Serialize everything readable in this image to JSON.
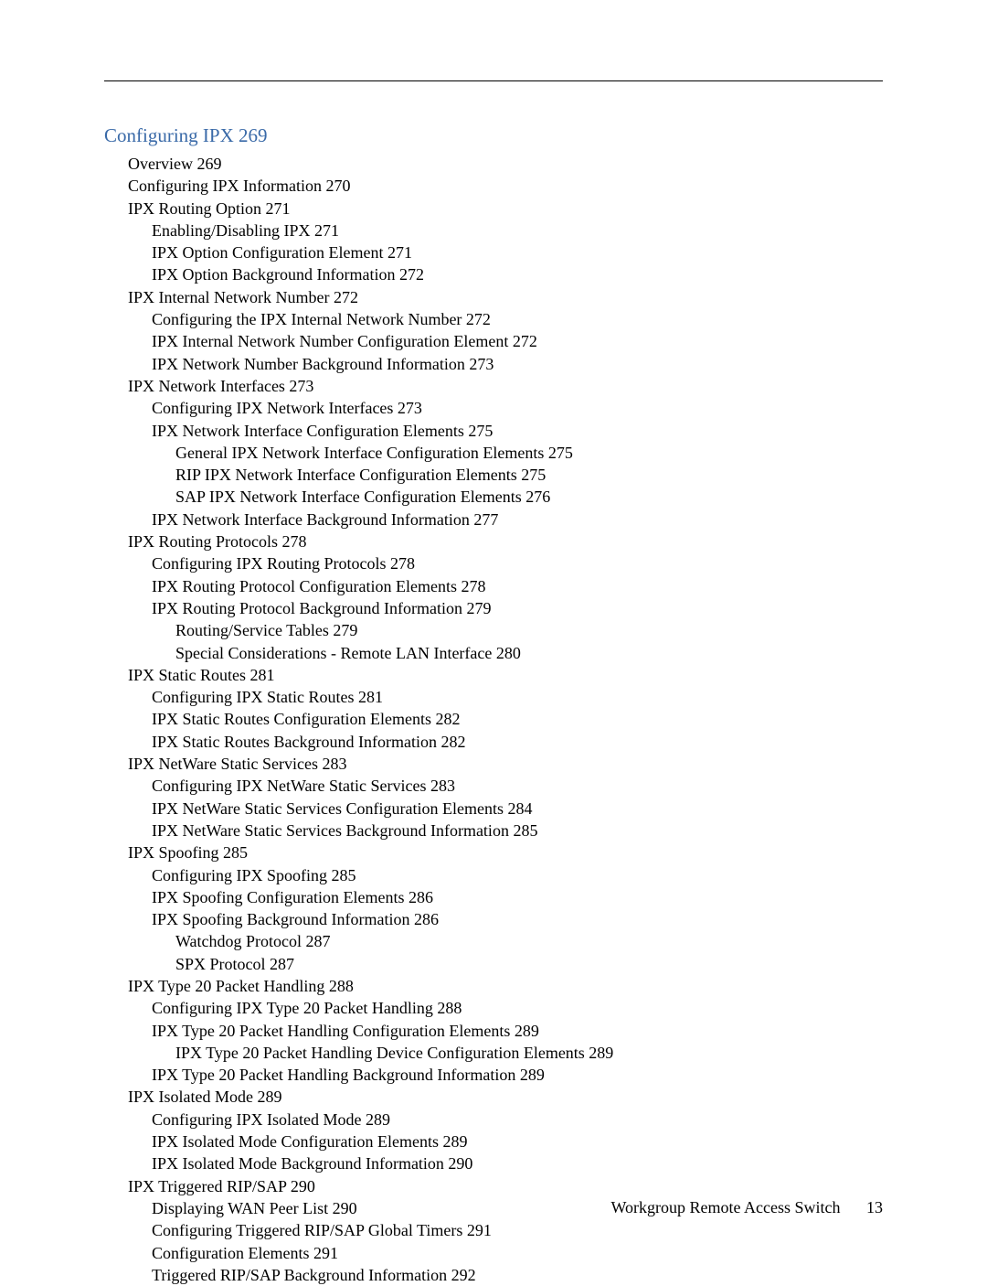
{
  "chapter": {
    "title": "Configuring IPX 269",
    "title_color": "#3a6aa8",
    "title_fontsize": 21,
    "body_fontsize": 18,
    "body_color": "#000000"
  },
  "toc": {
    "e0": "Overview 269",
    "e1": "Configuring IPX Information 270",
    "e2": "IPX Routing Option 271",
    "e3": "Enabling/Disabling IPX 271",
    "e4": "IPX Option Configuration Element 271",
    "e5": "IPX Option Background Information 272",
    "e6": "IPX Internal Network Number 272",
    "e7": "Configuring the IPX Internal Network Number 272",
    "e8": "IPX Internal Network Number Configuration Element 272",
    "e9": "IPX Network Number Background Information 273",
    "e10": "IPX Network Interfaces 273",
    "e11": "Configuring IPX Network Interfaces 273",
    "e12": "IPX Network Interface Configuration Elements 275",
    "e13": "General IPX Network Interface Configuration Elements 275",
    "e14": "RIP IPX Network Interface Configuration Elements 275",
    "e15": "SAP IPX Network Interface Configuration Elements 276",
    "e16": "IPX Network Interface Background Information 277",
    "e17": "IPX Routing Protocols 278",
    "e18": "Configuring IPX Routing Protocols 278",
    "e19": "IPX Routing Protocol Configuration Elements 278",
    "e20": "IPX Routing Protocol Background Information 279",
    "e21": "Routing/Service Tables 279",
    "e22": "Special Considerations - Remote LAN Interface 280",
    "e23": "IPX Static Routes 281",
    "e24": "Configuring IPX Static Routes 281",
    "e25": "IPX Static Routes Configuration Elements 282",
    "e26": "IPX Static Routes Background Information 282",
    "e27": "IPX NetWare Static Services 283",
    "e28": "Configuring IPX NetWare Static Services 283",
    "e29": "IPX NetWare Static Services Configuration Elements 284",
    "e30": "IPX NetWare Static Services Background Information 285",
    "e31": "IPX Spoofing 285",
    "e32": "Configuring IPX Spoofing 285",
    "e33": "IPX Spoofing Configuration Elements 286",
    "e34": "IPX Spoofing Background Information 286",
    "e35": "Watchdog Protocol 287",
    "e36": "SPX Protocol 287",
    "e37": "IPX Type 20 Packet Handling 288",
    "e38": "Configuring IPX Type 20 Packet Handling 288",
    "e39": "IPX Type 20 Packet Handling Configuration Elements 289",
    "e40": "IPX Type 20 Packet Handling Device Configuration Elements 289",
    "e41": "IPX Type 20 Packet Handling Background Information 289",
    "e42": "IPX Isolated Mode 289",
    "e43": "Configuring IPX Isolated Mode 289",
    "e44": "IPX Isolated Mode Configuration Elements 289",
    "e45": "IPX Isolated Mode Background Information 290",
    "e46": "IPX Triggered RIP/SAP 290",
    "e47": "Displaying WAN Peer List 290",
    "e48": "Configuring Triggered RIP/SAP Global Timers 291",
    "e49": "Configuration Elements 291",
    "e50": "Triggered RIP/SAP Background Information 292"
  },
  "footer": {
    "text": "Workgroup Remote Access Switch",
    "page_number": "13"
  }
}
